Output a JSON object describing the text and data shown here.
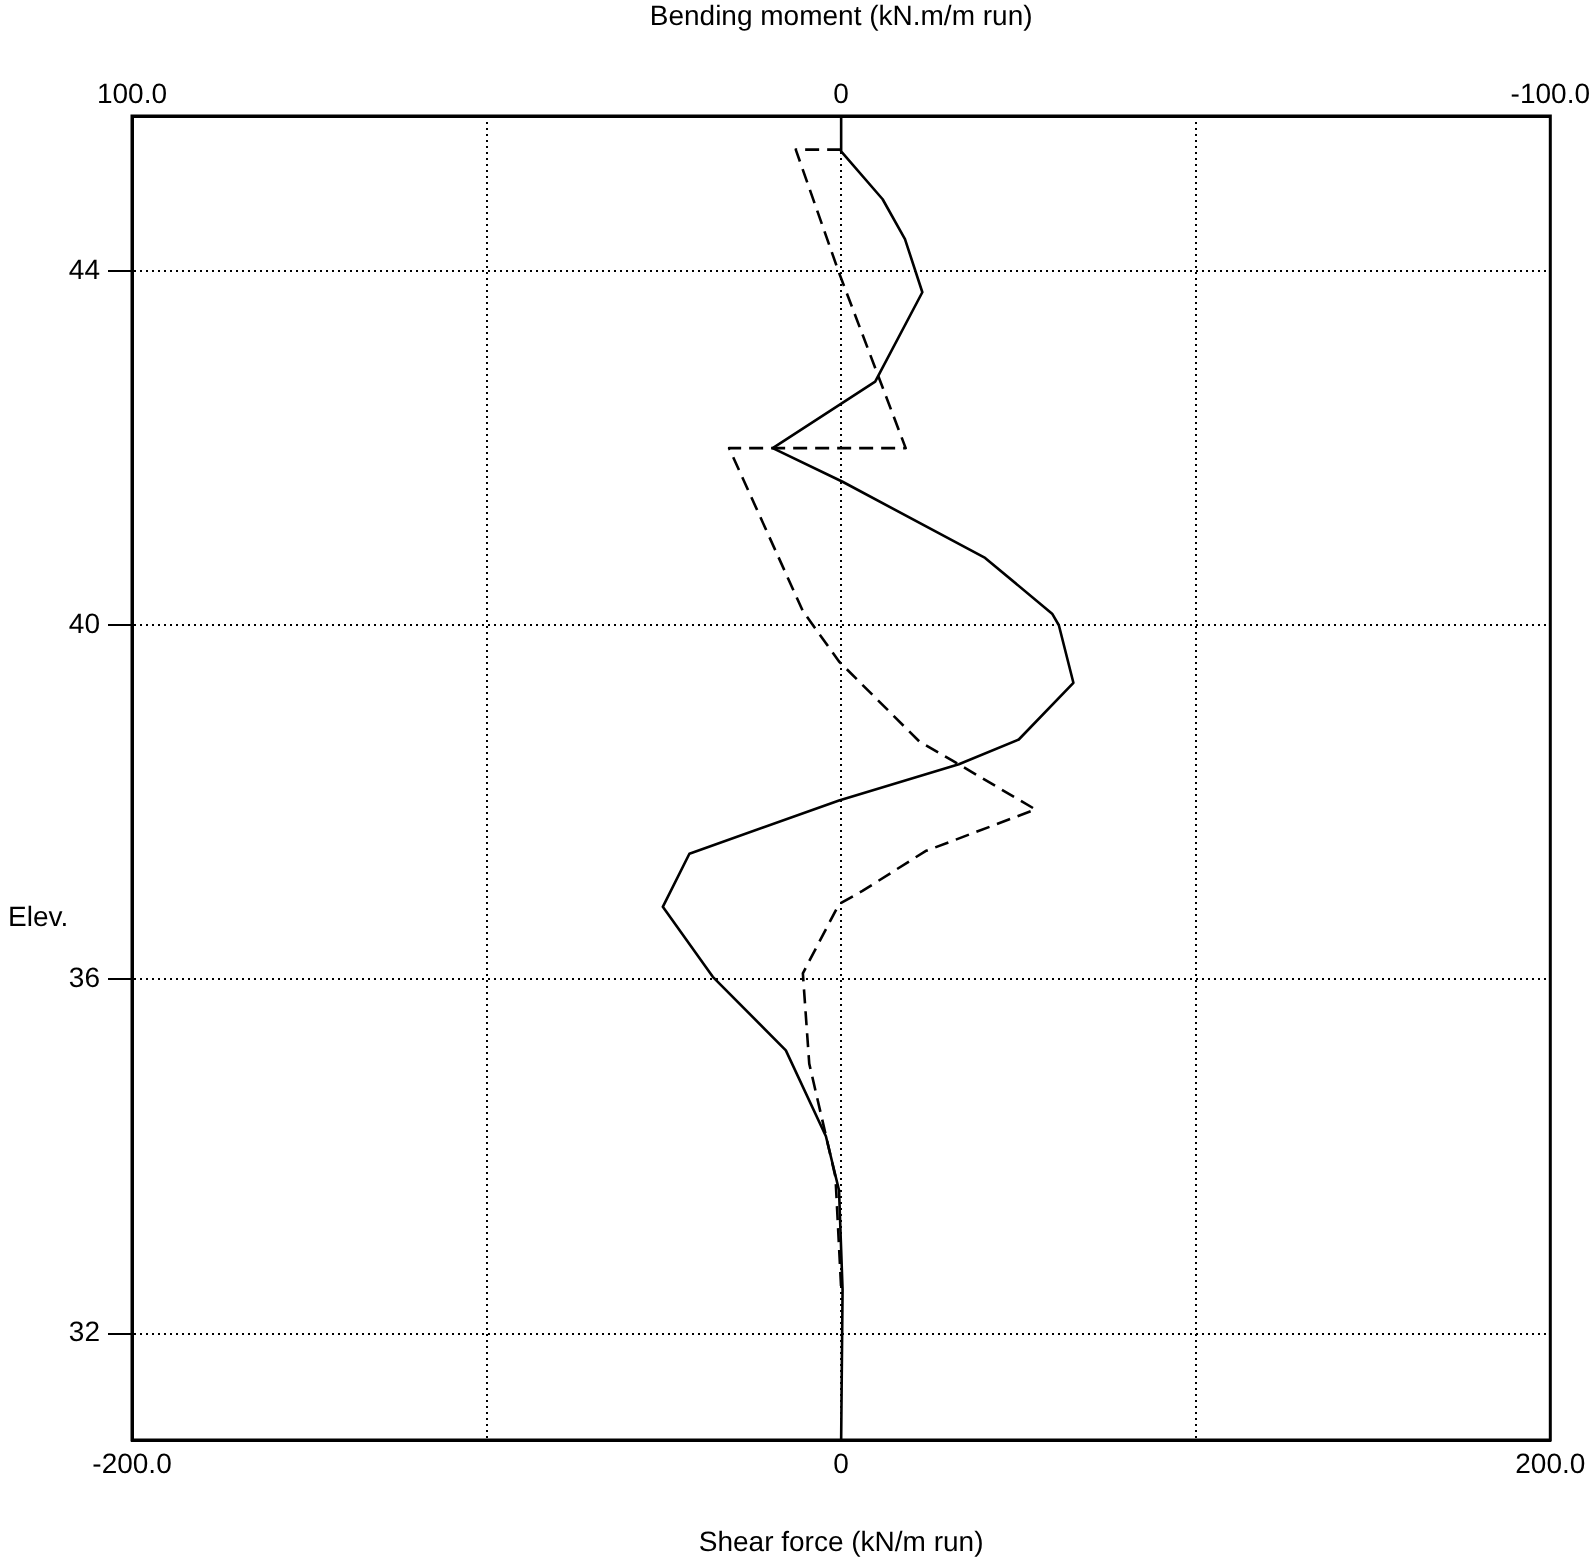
{
  "chart_data": {
    "type": "line",
    "xlabel": "Shear force (kN/m run)",
    "x2label": "Bending moment (kN.m/m run)",
    "ylabel": "Elev.",
    "xlim": [
      -200,
      200
    ],
    "xticks": [
      {
        "value": -200,
        "label": "-200.0"
      },
      {
        "value": -100,
        "label": null
      },
      0,
      {
        "value": 100,
        "label": null
      },
      {
        "value": 200,
        "label": "200.0"
      }
    ],
    "x2lim": [
      100,
      -100
    ],
    "x2ticks": [
      {
        "value": 100,
        "label": "100.0"
      },
      0,
      {
        "value": -100,
        "label": "-100.0"
      }
    ],
    "ylim": [
      30.8,
      45.75
    ],
    "yticks": [
      32,
      36,
      40,
      44
    ],
    "grid": true,
    "legend": false,
    "marker": "none",
    "series": [
      {
        "color": "#000000",
        "line_style": "solid",
        "x": [
          0,
          0,
          11.7,
          18,
          22.9,
          9.6,
          -19.3,
          0.4,
          40.6,
          59.5,
          61.4,
          65.5,
          50.1,
          33.2,
          -0.6,
          -42.8,
          -50.3,
          -36.2,
          -15.6,
          -4.3,
          -0.6,
          0.4,
          0
        ],
        "values": [
          45.75,
          45.35,
          44.81,
          44.36,
          43.76,
          42.75,
          42.0,
          41.62,
          40.76,
          40.13,
          40.0,
          39.35,
          38.71,
          38.43,
          38.02,
          37.42,
          36.82,
          36.03,
          35.2,
          34.23,
          33.62,
          32.5,
          30.8
        ]
      },
      {
        "color": "#000000",
        "line_style": "dashed",
        "axis": "x2",
        "x": [
          0,
          6.4,
          0.3,
          -9.1,
          15.8,
          5.4,
          0.3,
          -11.0,
          -15.7,
          -27.4,
          -11.9,
          -3.0,
          0.3,
          5.4,
          4.5,
          0.8,
          0
        ],
        "values": [
          45.37,
          45.37,
          43.98,
          42.0,
          42.0,
          40.16,
          39.59,
          38.69,
          38.47,
          37.92,
          37.45,
          37.0,
          36.85,
          36.07,
          35.05,
          33.77,
          32.51
        ]
      }
    ]
  }
}
